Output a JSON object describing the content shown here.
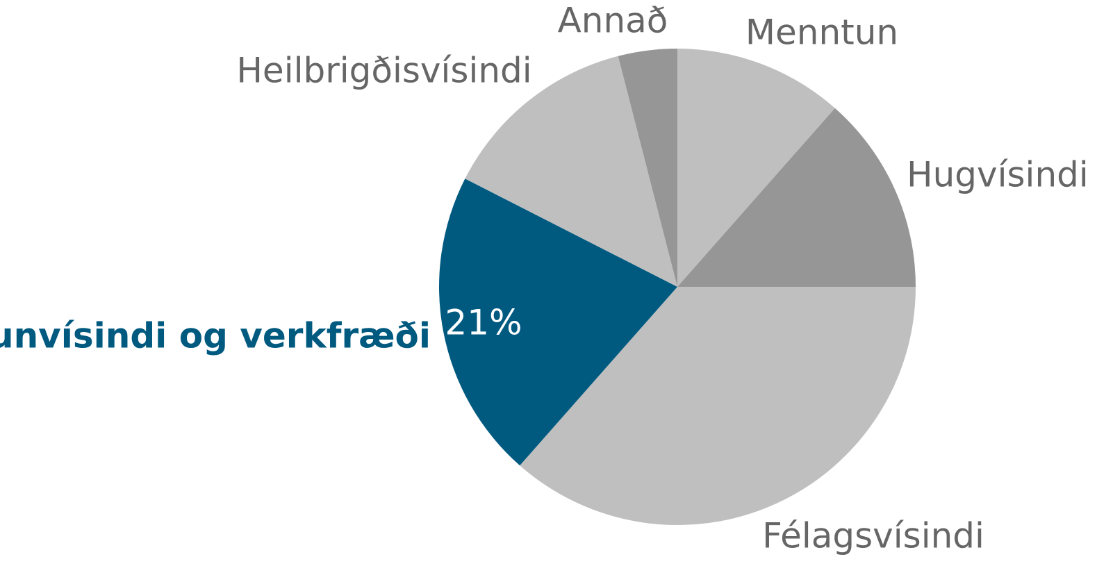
{
  "chart_data": {
    "type": "pie",
    "categories": [
      "Menntun",
      "Hugvísindi",
      "Félagsvísindi",
      "Raunvísindi og verkfræði",
      "Heilbrigðisvísindi",
      "Annað"
    ],
    "values": [
      11.5,
      13.5,
      36.5,
      21,
      13.5,
      4
    ],
    "value_labels": [
      null,
      null,
      null,
      "21%",
      null,
      null
    ],
    "colors": [
      "#bfbfbf",
      "#969696",
      "#bfbfbf",
      "#005a80",
      "#bfbfbf",
      "#969696"
    ],
    "label_colors": [
      "#666666",
      "#666666",
      "#666666",
      "#005a80",
      "#666666",
      "#666666"
    ]
  }
}
